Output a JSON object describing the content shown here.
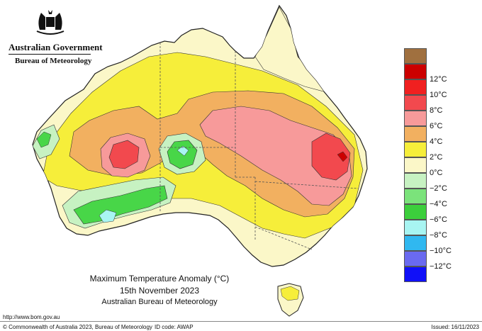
{
  "header": {
    "government": "Australian Government",
    "bureau": "Bureau of Meteorology"
  },
  "map": {
    "title": "Maximum Temperature Anomaly (°C)",
    "date": "15th November 2023",
    "agency": "Australian Bureau of Meteorology",
    "palette": {
      "ocean": "#ffffff",
      "plus12": "#a0703f",
      "plus10": "#cc0000",
      "plus8": "#f2494e",
      "plus6": "#f79a9a",
      "plus4": "#f2b060",
      "plus2": "#f6ee3a",
      "zero": "#fbf7c8",
      "minus2": "#c7f2c2",
      "minus4": "#48d648",
      "minus6": "#a8f5f2"
    }
  },
  "legend": {
    "items": [
      {
        "label": "",
        "color": "#a0703f"
      },
      {
        "label": "12°C",
        "color": "#cc0000"
      },
      {
        "label": "10°C",
        "color": "#f02020"
      },
      {
        "label": "8°C",
        "color": "#f2494e"
      },
      {
        "label": "6°C",
        "color": "#f79a9a"
      },
      {
        "label": "4°C",
        "color": "#f2b060"
      },
      {
        "label": "2°C",
        "color": "#f6ee3a"
      },
      {
        "label": "0°C",
        "color": "#fbf7c8"
      },
      {
        "label": "−2°C",
        "color": "#c7f2c2"
      },
      {
        "label": "−4°C",
        "color": "#7be37b"
      },
      {
        "label": "−6°C",
        "color": "#3ccf3c"
      },
      {
        "label": "−8°C",
        "color": "#a8f5f2"
      },
      {
        "label": "−10°C",
        "color": "#30b8f0"
      },
      {
        "label": "−12°C",
        "color": "#6a6af0"
      },
      {
        "label": "",
        "color": "#1010f8"
      }
    ]
  },
  "footer": {
    "url": "http://www.bom.gov.au",
    "copyright": "© Commonwealth of Australia 2023, Bureau of Meteorology",
    "id_code": "ID code: AWAP",
    "issued": "Issued: 16/11/2023"
  }
}
